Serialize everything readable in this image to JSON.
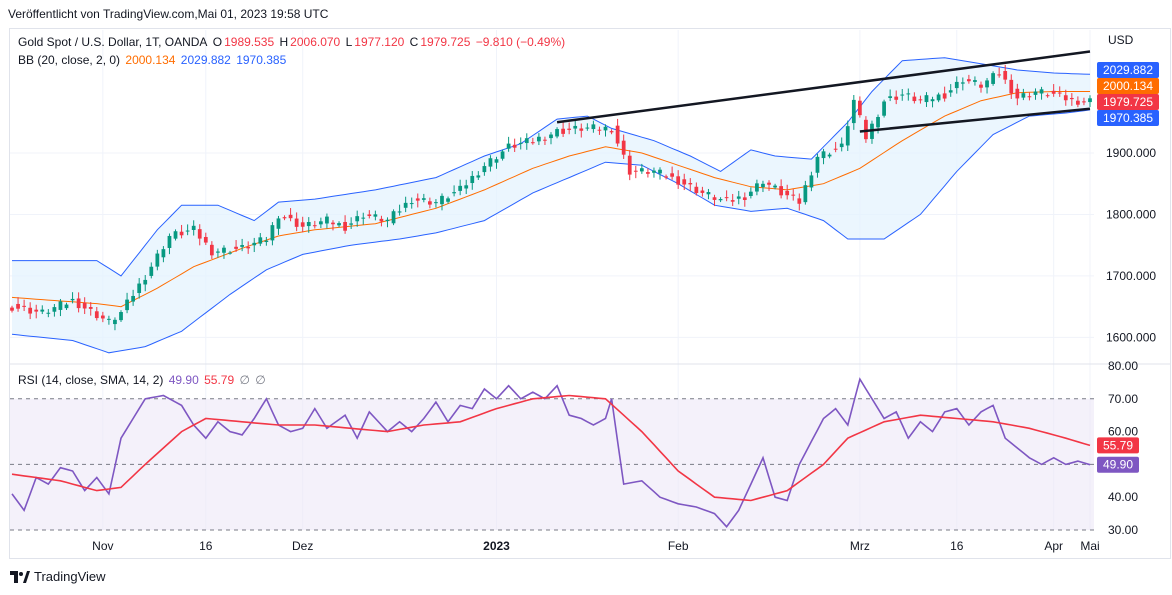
{
  "caption": "Veröffentlicht von TradingView.com,Mai 01, 2023 19:58 UTC",
  "footer": {
    "brand": "TradingView",
    "logo_icon": "tradingview-logo-icon"
  },
  "legend": {
    "symbol": "Gold Spot / U.S. Dollar, 1T, OANDA",
    "open_label": "O",
    "open": "1989.535",
    "high_label": "H",
    "high": "2006.070",
    "low_label": "L",
    "low": "1977.120",
    "close_label": "C",
    "close": "1979.725",
    "change": "−9.810 (−0.49%)",
    "bb_title": "BB (20, close, 2, 0)",
    "bb_basis": "2000.134",
    "bb_upper": "2029.882",
    "bb_lower": "1970.385",
    "rsi_title": "RSI (14, close, SMA, 14, 2)",
    "rsi_value": "49.90",
    "rsi_sma": "55.79",
    "rsi_na1": "∅",
    "rsi_na2": "∅"
  },
  "colors": {
    "up": "#089981",
    "down": "#f23645",
    "bb_band": "#2962ff",
    "bb_basis": "#ff6d00",
    "bb_fill": "#e3f2fd",
    "rsi_line": "#7e57c2",
    "rsi_sma": "#f23645",
    "rsi_bg": "#ede7f6",
    "trendline": "#131722",
    "grid": "#f0f3fa"
  },
  "chart_data": [
    {
      "type": "candlestick",
      "title": "Gold Spot / U.S. Dollar, 1T, OANDA",
      "currency": "USD",
      "ylim": [
        1560,
        2100
      ],
      "y_ticks": [
        "1600.000",
        "1700.000",
        "1800.000",
        "1900.000"
      ],
      "x_tick_labels": [
        "Nov",
        "16",
        "Dez",
        "2023",
        "Feb",
        "Mrz",
        "16",
        "Apr",
        "Mai"
      ],
      "price_tags": [
        {
          "label": "2029.882",
          "value": 2029.882,
          "color": "#2962ff"
        },
        {
          "label": "2000.134",
          "value": 2000.134,
          "color": "#ff6d00"
        },
        {
          "label": "1979.725",
          "value": 1979.725,
          "color": "#f23645"
        },
        {
          "label": "1970.385",
          "value": 1970.385,
          "color": "#2962ff"
        }
      ],
      "close_anchors": [
        [
          0,
          1650
        ],
        [
          5,
          1640
        ],
        [
          10,
          1660
        ],
        [
          16,
          1625
        ],
        [
          18,
          1640
        ],
        [
          22,
          1700
        ],
        [
          26,
          1765
        ],
        [
          30,
          1775
        ],
        [
          33,
          1740
        ],
        [
          38,
          1745
        ],
        [
          42,
          1760
        ],
        [
          44,
          1800
        ],
        [
          48,
          1780
        ],
        [
          52,
          1790
        ],
        [
          55,
          1780
        ],
        [
          58,
          1800
        ],
        [
          62,
          1790
        ],
        [
          66,
          1825
        ],
        [
          70,
          1820
        ],
        [
          74,
          1840
        ],
        [
          78,
          1880
        ],
        [
          82,
          1910
        ],
        [
          86,
          1920
        ],
        [
          90,
          1935
        ],
        [
          94,
          1940
        ],
        [
          99,
          1940
        ],
        [
          102,
          1870
        ],
        [
          106,
          1870
        ],
        [
          110,
          1855
        ],
        [
          114,
          1835
        ],
        [
          118,
          1820
        ],
        [
          121,
          1830
        ],
        [
          124,
          1855
        ],
        [
          127,
          1835
        ],
        [
          130,
          1820
        ],
        [
          133,
          1895
        ],
        [
          137,
          1910
        ],
        [
          139,
          1985
        ],
        [
          141,
          1925
        ],
        [
          144,
          1985
        ],
        [
          147,
          1995
        ],
        [
          150,
          1985
        ],
        [
          154,
          1995
        ],
        [
          157,
          2020
        ],
        [
          160,
          2010
        ],
        [
          163,
          2030
        ],
        [
          166,
          1990
        ],
        [
          169,
          2000
        ],
        [
          172,
          1995
        ],
        [
          175,
          1985
        ],
        [
          178,
          1985
        ]
      ],
      "bollinger": {
        "upper_anchors": [
          [
            0,
            1725
          ],
          [
            14,
            1725
          ],
          [
            18,
            1700
          ],
          [
            24,
            1775
          ],
          [
            28,
            1815
          ],
          [
            34,
            1815
          ],
          [
            40,
            1790
          ],
          [
            44,
            1820
          ],
          [
            50,
            1825
          ],
          [
            60,
            1840
          ],
          [
            70,
            1860
          ],
          [
            78,
            1895
          ],
          [
            84,
            1915
          ],
          [
            90,
            1955
          ],
          [
            95,
            1960
          ],
          [
            99,
            1940
          ],
          [
            106,
            1920
          ],
          [
            112,
            1895
          ],
          [
            117,
            1870
          ],
          [
            122,
            1905
          ],
          [
            126,
            1895
          ],
          [
            132,
            1890
          ],
          [
            138,
            1950
          ],
          [
            142,
            2000
          ],
          [
            147,
            2050
          ],
          [
            154,
            2055
          ],
          [
            160,
            2045
          ],
          [
            166,
            2035
          ],
          [
            172,
            2030
          ],
          [
            178,
            2028
          ]
        ],
        "basis_anchors": [
          [
            0,
            1665
          ],
          [
            14,
            1655
          ],
          [
            18,
            1650
          ],
          [
            24,
            1680
          ],
          [
            30,
            1715
          ],
          [
            38,
            1745
          ],
          [
            44,
            1765
          ],
          [
            50,
            1775
          ],
          [
            60,
            1785
          ],
          [
            70,
            1810
          ],
          [
            78,
            1840
          ],
          [
            86,
            1875
          ],
          [
            92,
            1895
          ],
          [
            98,
            1910
          ],
          [
            104,
            1900
          ],
          [
            110,
            1880
          ],
          [
            116,
            1860
          ],
          [
            122,
            1845
          ],
          [
            128,
            1840
          ],
          [
            134,
            1850
          ],
          [
            140,
            1875
          ],
          [
            147,
            1920
          ],
          [
            154,
            1960
          ],
          [
            160,
            1985
          ],
          [
            166,
            1998
          ],
          [
            172,
            2000
          ],
          [
            178,
            2000
          ]
        ],
        "lower_anchors": [
          [
            0,
            1605
          ],
          [
            10,
            1595
          ],
          [
            16,
            1575
          ],
          [
            22,
            1585
          ],
          [
            28,
            1610
          ],
          [
            36,
            1670
          ],
          [
            42,
            1710
          ],
          [
            48,
            1735
          ],
          [
            56,
            1750
          ],
          [
            64,
            1760
          ],
          [
            70,
            1770
          ],
          [
            78,
            1790
          ],
          [
            86,
            1835
          ],
          [
            92,
            1860
          ],
          [
            98,
            1885
          ],
          [
            104,
            1880
          ],
          [
            110,
            1850
          ],
          [
            116,
            1815
          ],
          [
            122,
            1805
          ],
          [
            128,
            1810
          ],
          [
            134,
            1790
          ],
          [
            138,
            1760
          ],
          [
            144,
            1760
          ],
          [
            150,
            1800
          ],
          [
            156,
            1870
          ],
          [
            162,
            1930
          ],
          [
            168,
            1960
          ],
          [
            174,
            1965
          ],
          [
            178,
            1970
          ]
        ]
      },
      "trendlines": [
        {
          "from": [
            90,
            1950
          ],
          "to": [
            178,
            2065
          ]
        },
        {
          "from": [
            140,
            1935
          ],
          "to": [
            178,
            1972
          ]
        }
      ]
    },
    {
      "type": "line",
      "title": "RSI (14, close, SMA, 14, 2)",
      "ylim": [
        30,
        80
      ],
      "y_ticks": [
        "30.00",
        "40.00",
        "50.00",
        "60.00",
        "70.00",
        "80.00"
      ],
      "band": [
        30,
        70
      ],
      "midline": 50,
      "price_tags": [
        {
          "label": "55.79",
          "value": 55.79,
          "color": "#f23645"
        },
        {
          "label": "49.90",
          "value": 49.9,
          "color": "#7e57c2"
        }
      ],
      "series": [
        {
          "role": "rsi",
          "anchors": [
            [
              0,
              41
            ],
            [
              2,
              36
            ],
            [
              4,
              46
            ],
            [
              6,
              44
            ],
            [
              8,
              49
            ],
            [
              10,
              48
            ],
            [
              12,
              42
            ],
            [
              14,
              46
            ],
            [
              16,
              41
            ],
            [
              18,
              58
            ],
            [
              20,
              64
            ],
            [
              22,
              70
            ],
            [
              25,
              71
            ],
            [
              28,
              68
            ],
            [
              30,
              62
            ],
            [
              32,
              58
            ],
            [
              34,
              63
            ],
            [
              36,
              60
            ],
            [
              38,
              59
            ],
            [
              40,
              64
            ],
            [
              42,
              70
            ],
            [
              44,
              62
            ],
            [
              46,
              60
            ],
            [
              48,
              61
            ],
            [
              50,
              67
            ],
            [
              52,
              61
            ],
            [
              55,
              65
            ],
            [
              57,
              58
            ],
            [
              59,
              66
            ],
            [
              62,
              60
            ],
            [
              64,
              63
            ],
            [
              66,
              60
            ],
            [
              68,
              64
            ],
            [
              70,
              69
            ],
            [
              72,
              63
            ],
            [
              74,
              68
            ],
            [
              76,
              67
            ],
            [
              78,
              73
            ],
            [
              80,
              70
            ],
            [
              82,
              74
            ],
            [
              84,
              70
            ],
            [
              86,
              72
            ],
            [
              88,
              70
            ],
            [
              90,
              74
            ],
            [
              92,
              65
            ],
            [
              94,
              64
            ],
            [
              96,
              62
            ],
            [
              98,
              64
            ],
            [
              99,
              70
            ],
            [
              101,
              44
            ],
            [
              104,
              45
            ],
            [
              107,
              40
            ],
            [
              110,
              38
            ],
            [
              113,
              37
            ],
            [
              116,
              35
            ],
            [
              118,
              31
            ],
            [
              120,
              36
            ],
            [
              122,
              44
            ],
            [
              124,
              52
            ],
            [
              126,
              40
            ],
            [
              128,
              39
            ],
            [
              130,
              50
            ],
            [
              132,
              57
            ],
            [
              134,
              64
            ],
            [
              136,
              67
            ],
            [
              138,
              62
            ],
            [
              140,
              76
            ],
            [
              142,
              70
            ],
            [
              144,
              64
            ],
            [
              146,
              66
            ],
            [
              148,
              58
            ],
            [
              150,
              63
            ],
            [
              152,
              60
            ],
            [
              154,
              66
            ],
            [
              156,
              67
            ],
            [
              158,
              62
            ],
            [
              160,
              66
            ],
            [
              162,
              68
            ],
            [
              164,
              58
            ],
            [
              166,
              55
            ],
            [
              168,
              52
            ],
            [
              170,
              50
            ],
            [
              172,
              52
            ],
            [
              174,
              50
            ],
            [
              176,
              51
            ],
            [
              178,
              49.9
            ]
          ]
        },
        {
          "role": "rsi_sma",
          "anchors": [
            [
              0,
              47
            ],
            [
              8,
              45
            ],
            [
              14,
              42
            ],
            [
              18,
              43
            ],
            [
              22,
              50
            ],
            [
              28,
              60
            ],
            [
              32,
              64
            ],
            [
              38,
              63
            ],
            [
              44,
              62
            ],
            [
              50,
              62
            ],
            [
              56,
              61
            ],
            [
              62,
              60
            ],
            [
              68,
              62
            ],
            [
              74,
              63
            ],
            [
              80,
              67
            ],
            [
              86,
              70
            ],
            [
              92,
              71
            ],
            [
              98,
              70
            ],
            [
              104,
              60
            ],
            [
              110,
              48
            ],
            [
              116,
              40
            ],
            [
              122,
              39
            ],
            [
              128,
              42
            ],
            [
              134,
              50
            ],
            [
              138,
              58
            ],
            [
              144,
              63
            ],
            [
              150,
              65
            ],
            [
              156,
              64
            ],
            [
              162,
              63
            ],
            [
              168,
              61
            ],
            [
              174,
              58
            ],
            [
              178,
              55.79
            ]
          ]
        }
      ]
    }
  ]
}
